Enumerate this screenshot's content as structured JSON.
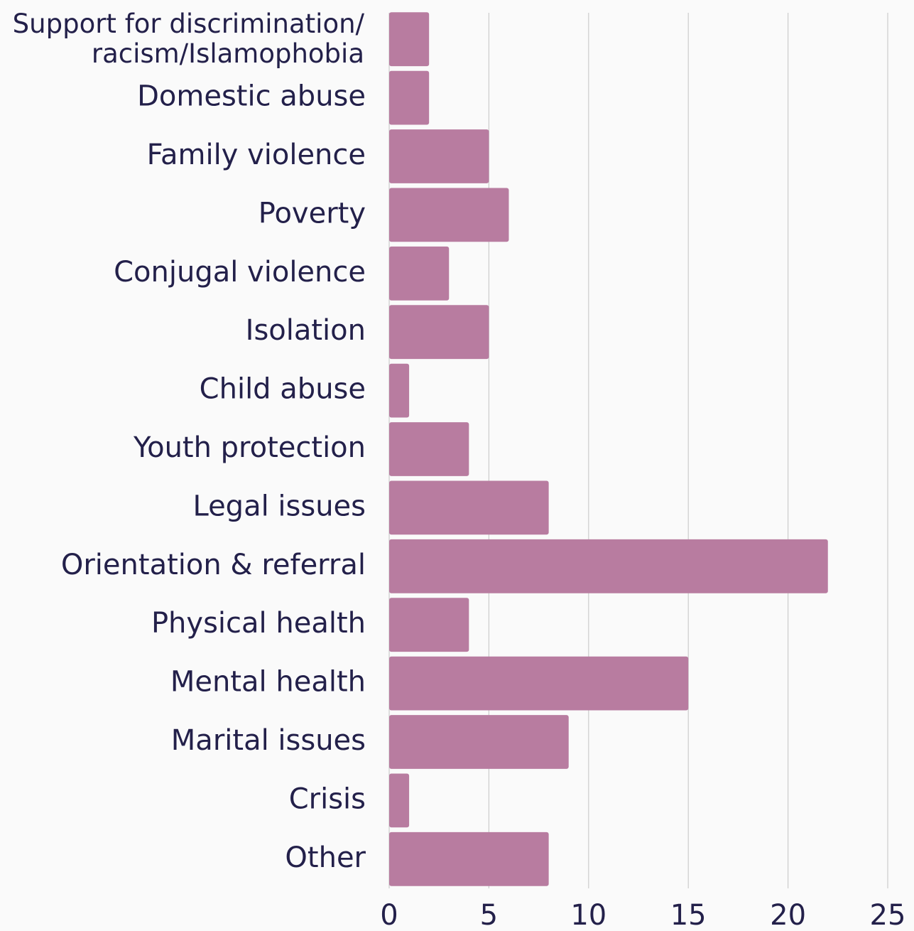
{
  "chart_data": {
    "type": "barh",
    "categories": [
      "Support for discrimination/ racism/Islamophobia",
      "Domestic abuse",
      "Family violence",
      "Poverty",
      "Conjugal violence",
      "Isolation",
      "Child abuse",
      "Youth protection",
      "Legal issues",
      "Orientation & referral",
      "Physical health",
      "Mental health",
      "Marital issues",
      "Crisis",
      "Other"
    ],
    "values": [
      2,
      2,
      5,
      6,
      3,
      5,
      1,
      4,
      8,
      22,
      4,
      15,
      9,
      1,
      8
    ],
    "color": "#b87ca0",
    "xlim": [
      0,
      25
    ],
    "xticks": [
      0,
      5,
      10,
      15,
      20,
      25
    ],
    "grid": true
  }
}
